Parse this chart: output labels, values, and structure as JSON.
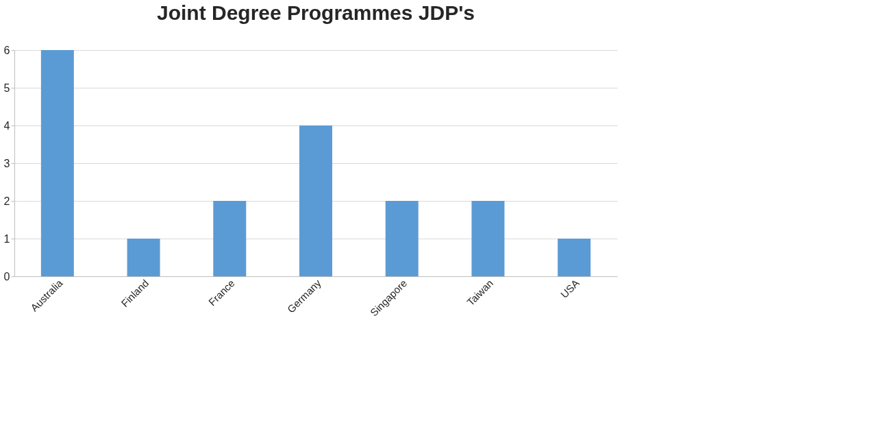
{
  "chart_data": {
    "type": "bar",
    "title": "Joint Degree Programmes JDP's",
    "categories": [
      "Australia",
      "Finland",
      "France",
      "Germany",
      "Singapore",
      "Taiwan",
      "USA"
    ],
    "values": [
      6,
      1,
      2,
      4,
      2,
      2,
      1
    ],
    "color": "#5b9bd5",
    "ylim": [
      0,
      6
    ],
    "yticks": [
      0,
      1,
      2,
      3,
      4,
      5,
      6
    ],
    "grid": "y"
  }
}
